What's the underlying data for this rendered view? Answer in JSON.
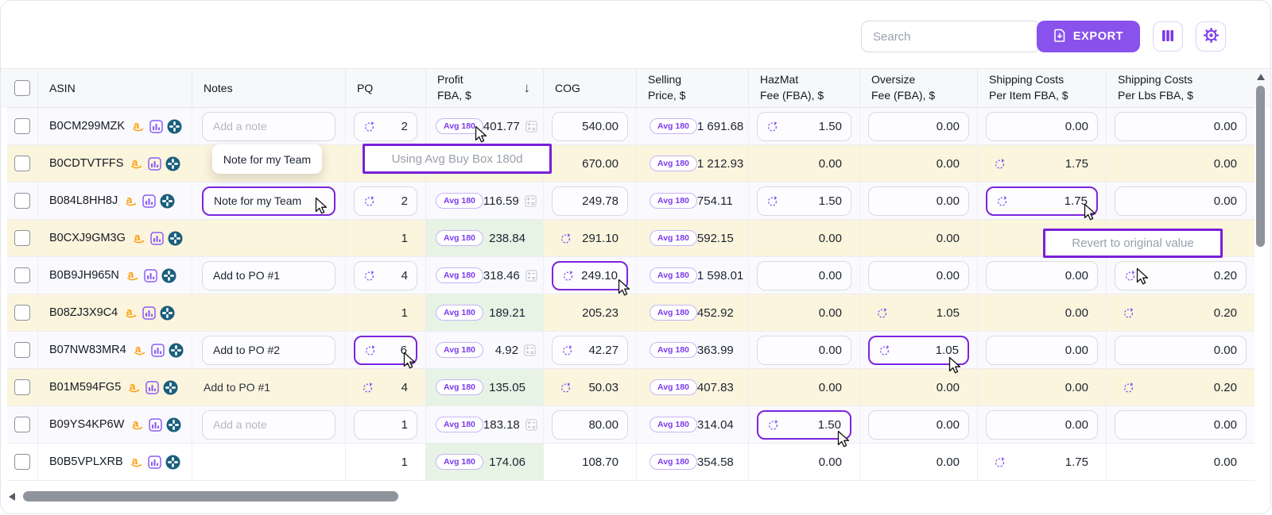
{
  "toolbar": {
    "search_placeholder": "Search",
    "export_label": "EXPORT"
  },
  "tooltips": {
    "avg_buy_box": "Using Avg Buy Box 180d",
    "note_preview": "Note for my Team",
    "revert": "Revert to original value"
  },
  "colors": {
    "accent_purple": "#8952ec",
    "focus_purple": "#7c24dd",
    "badge_purple": "#7c3aed",
    "cream_row": "#fcf5dd",
    "green_profit": "#e6f3e5",
    "amazon_orange": "#FF9900",
    "app_teal": "#1b5f7d"
  },
  "table": {
    "badge_label": "Avg 180",
    "headers": [
      {
        "id": "select",
        "label": ""
      },
      {
        "id": "asin",
        "label": "ASIN"
      },
      {
        "id": "notes",
        "label": "Notes"
      },
      {
        "id": "pq",
        "label": "PQ"
      },
      {
        "id": "profit",
        "line1": "Profit",
        "line2": "FBA, $",
        "sorted": "desc"
      },
      {
        "id": "cog",
        "label": "COG"
      },
      {
        "id": "selling",
        "line1": "Selling",
        "line2": "Price, $"
      },
      {
        "id": "hazmat",
        "line1": "HazMat",
        "line2": "Fee (FBA), $"
      },
      {
        "id": "oversize",
        "line1": "Oversize",
        "line2": "Fee (FBA), $"
      },
      {
        "id": "ship_item",
        "line1": "Shipping Costs",
        "line2": "Per Item FBA, $"
      },
      {
        "id": "ship_lbs",
        "line1": "Shipping Costs",
        "line2": "Per Lbs FBA, $"
      }
    ],
    "rows": [
      {
        "asin": "B0CM299MZK",
        "row_bg": "lavender",
        "note": {
          "variant": "placeholder",
          "text": "Add a note"
        },
        "pq": {
          "box": true,
          "refresh": true,
          "value": "2"
        },
        "profit": {
          "value": "401.77",
          "calc": true
        },
        "cog": {
          "box": true,
          "value": "540.00"
        },
        "selling": {
          "value": "1 691.68"
        },
        "hazmat": {
          "box": true,
          "refresh": true,
          "value": "1.50"
        },
        "oversize": {
          "box": true,
          "value": "0.00"
        },
        "ship_item": {
          "box": true,
          "value": "0.00"
        },
        "ship_lbs": {
          "box": true,
          "value": "0.00"
        }
      },
      {
        "asin": "B0CDTVTFFS",
        "row_bg": "cream",
        "note": {
          "variant": "empty"
        },
        "pq": {
          "hidden": true
        },
        "profit": {
          "hidden": true
        },
        "cog": {
          "box": false,
          "value": "670.00"
        },
        "selling": {
          "value": "1 212.93"
        },
        "hazmat": {
          "box": false,
          "value": "0.00"
        },
        "oversize": {
          "box": false,
          "value": "0.00"
        },
        "ship_item": {
          "box": false,
          "refresh": true,
          "value": "1.75"
        },
        "ship_lbs": {
          "box": false,
          "value": "0.00"
        }
      },
      {
        "asin": "B084L8HH8J",
        "row_bg": "lavender",
        "note": {
          "variant": "focused",
          "text": "Note for my Team"
        },
        "pq": {
          "box": true,
          "refresh": true,
          "value": "2"
        },
        "profit": {
          "value": "116.59",
          "calc": true
        },
        "cog": {
          "box": true,
          "value": "249.78"
        },
        "selling": {
          "value": "754.11"
        },
        "hazmat": {
          "box": true,
          "refresh": true,
          "value": "1.50"
        },
        "oversize": {
          "box": true,
          "value": "0.00"
        },
        "ship_item": {
          "box": true,
          "refresh": true,
          "value": "1.75",
          "focused": true
        },
        "ship_lbs": {
          "box": true,
          "value": "0.00"
        }
      },
      {
        "asin": "B0CXJ9GM3G",
        "row_bg": "cream",
        "note": {
          "variant": "empty"
        },
        "pq": {
          "box": false,
          "value": "1"
        },
        "profit": {
          "value": "238.84",
          "green": true
        },
        "cog": {
          "box": false,
          "refresh": true,
          "value": "291.10"
        },
        "selling": {
          "value": "592.15"
        },
        "hazmat": {
          "box": false,
          "value": "0.00"
        },
        "oversize": {
          "box": false,
          "value": "0.00"
        },
        "ship_item": {
          "hidden": true
        },
        "ship_lbs": {
          "hidden": true
        }
      },
      {
        "asin": "B0B9JH965N",
        "row_bg": "lavender",
        "note": {
          "variant": "boxed",
          "text": "Add to PO #1"
        },
        "pq": {
          "box": true,
          "refresh": true,
          "value": "4"
        },
        "profit": {
          "value": "318.46",
          "calc": true
        },
        "cog": {
          "box": true,
          "refresh": true,
          "value": "249.10",
          "focused": true
        },
        "selling": {
          "value": "1 598.01"
        },
        "hazmat": {
          "box": true,
          "value": "0.00"
        },
        "oversize": {
          "box": true,
          "value": "0.00"
        },
        "ship_item": {
          "box": true,
          "value": "0.00"
        },
        "ship_lbs": {
          "box": true,
          "refresh": true,
          "value": "0.20"
        }
      },
      {
        "asin": "B08ZJ3X9C4",
        "row_bg": "cream",
        "note": {
          "variant": "empty"
        },
        "pq": {
          "box": false,
          "value": "1"
        },
        "profit": {
          "value": "189.21",
          "green": true
        },
        "cog": {
          "box": false,
          "value": "205.23"
        },
        "selling": {
          "value": "452.92"
        },
        "hazmat": {
          "box": false,
          "value": "0.00"
        },
        "oversize": {
          "box": false,
          "refresh": true,
          "value": "1.05"
        },
        "ship_item": {
          "box": false,
          "value": "0.00"
        },
        "ship_lbs": {
          "box": false,
          "refresh": true,
          "value": "0.20"
        }
      },
      {
        "asin": "B07NW83MR4",
        "row_bg": "lavender",
        "note": {
          "variant": "boxed",
          "text": "Add to PO #2"
        },
        "pq": {
          "box": true,
          "refresh": true,
          "value": "6",
          "focused": true
        },
        "profit": {
          "value": "4.92",
          "calc": true
        },
        "cog": {
          "box": true,
          "refresh": true,
          "value": "42.27"
        },
        "selling": {
          "value": "363.99"
        },
        "hazmat": {
          "box": true,
          "value": "0.00"
        },
        "oversize": {
          "box": true,
          "refresh": true,
          "value": "1.05",
          "focused": true
        },
        "ship_item": {
          "box": true,
          "value": "0.00"
        },
        "ship_lbs": {
          "box": true,
          "value": "0.00"
        }
      },
      {
        "asin": "B01M594FG5",
        "row_bg": "cream",
        "note": {
          "variant": "plain",
          "text": "Add to PO #1"
        },
        "pq": {
          "box": false,
          "refresh": true,
          "value": "4"
        },
        "profit": {
          "value": "135.05",
          "green": true
        },
        "cog": {
          "box": false,
          "refresh": true,
          "value": "50.03"
        },
        "selling": {
          "value": "407.83"
        },
        "hazmat": {
          "box": false,
          "value": "0.00"
        },
        "oversize": {
          "box": false,
          "value": "0.00"
        },
        "ship_item": {
          "box": false,
          "value": "0.00"
        },
        "ship_lbs": {
          "box": false,
          "refresh": true,
          "value": "0.20"
        }
      },
      {
        "asin": "B09YS4KP6W",
        "row_bg": "lavender",
        "note": {
          "variant": "placeholder",
          "text": "Add a note"
        },
        "pq": {
          "box": true,
          "value": "1"
        },
        "profit": {
          "value": "183.18",
          "calc": true
        },
        "cog": {
          "box": true,
          "value": "80.00"
        },
        "selling": {
          "value": "314.04"
        },
        "hazmat": {
          "box": true,
          "refresh": true,
          "value": "1.50",
          "focused": true
        },
        "oversize": {
          "box": true,
          "value": "0.00"
        },
        "ship_item": {
          "box": true,
          "value": "0.00"
        },
        "ship_lbs": {
          "box": true,
          "value": "0.00"
        }
      },
      {
        "asin": "B0B5VPLXRB",
        "row_bg": "white",
        "note": {
          "variant": "empty"
        },
        "pq": {
          "box": false,
          "value": "1"
        },
        "profit": {
          "value": "174.06",
          "green": true
        },
        "cog": {
          "box": false,
          "value": "108.70"
        },
        "selling": {
          "value": "354.58"
        },
        "hazmat": {
          "box": false,
          "value": "0.00"
        },
        "oversize": {
          "box": false,
          "value": "0.00"
        },
        "ship_item": {
          "box": false,
          "refresh": true,
          "value": "1.75"
        },
        "ship_lbs": {
          "box": false,
          "value": "0.00"
        }
      }
    ]
  }
}
